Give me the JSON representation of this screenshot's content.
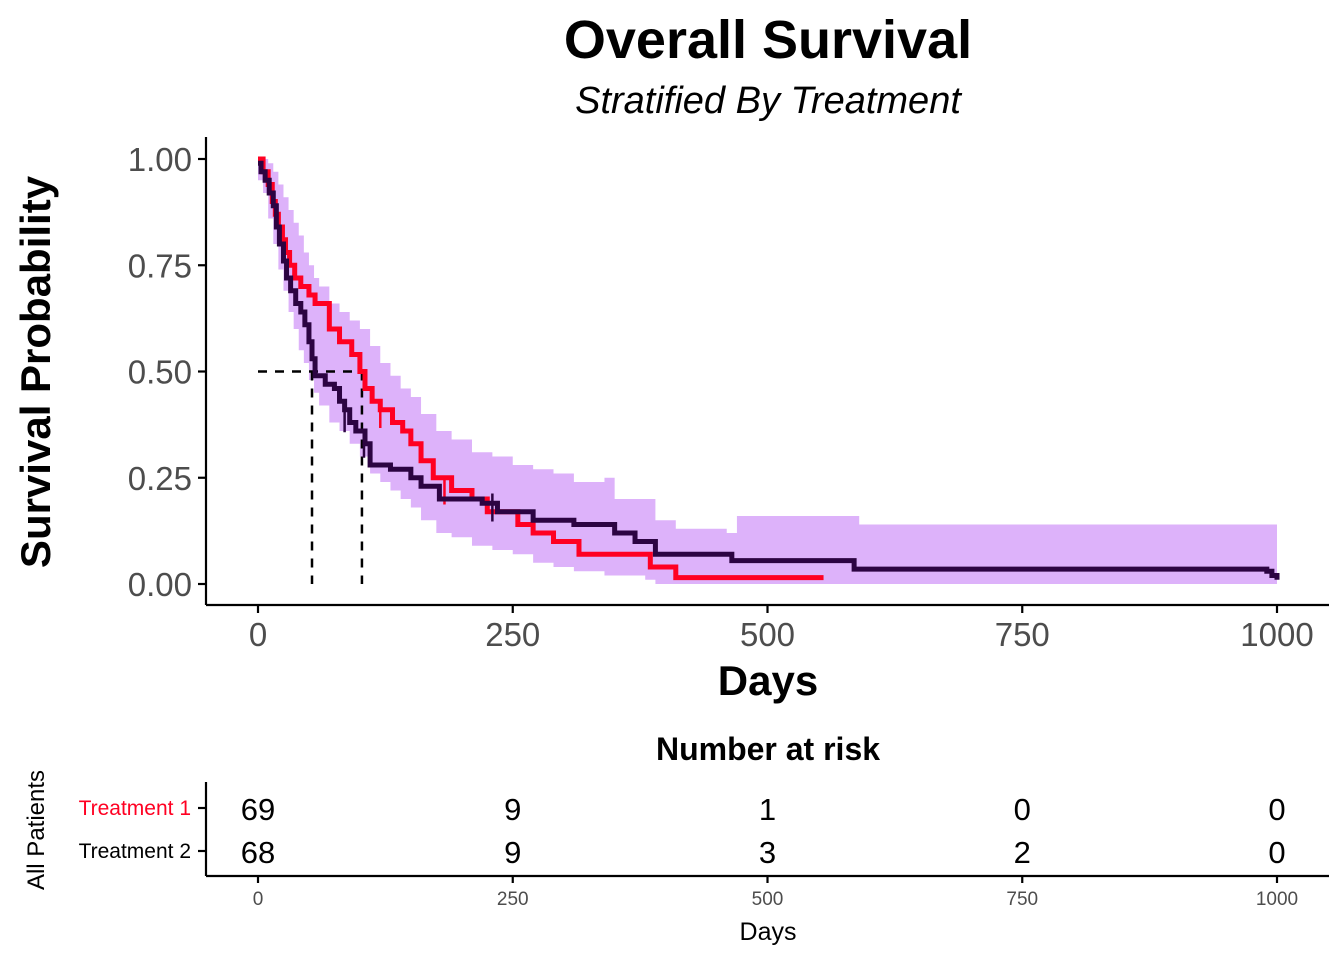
{
  "colors": {
    "treatment1": "#FF0022",
    "treatment2": "#2C0442",
    "ci_band": "#DDB2FA",
    "median_line": "#000000"
  },
  "chart_data": {
    "type": "line",
    "title": "Overall Survival",
    "subtitle": "Stratified By Treatment",
    "xlabel": "Days",
    "ylabel": "Survival Probability",
    "xlim": [
      0,
      1000
    ],
    "ylim": [
      0,
      1
    ],
    "x_ticks": [
      "0",
      "250",
      "500",
      "750",
      "1000"
    ],
    "y_ticks": [
      "0.00",
      "0.25",
      "0.50",
      "0.75",
      "1.00"
    ],
    "grid": false,
    "series": [
      {
        "color_key": "treatment1",
        "steps": [
          [
            0,
            1.0
          ],
          [
            5,
            0.97
          ],
          [
            10,
            0.94
          ],
          [
            14,
            0.9
          ],
          [
            17,
            0.87
          ],
          [
            20,
            0.84
          ],
          [
            24,
            0.81
          ],
          [
            27,
            0.78
          ],
          [
            31,
            0.75
          ],
          [
            36,
            0.72
          ],
          [
            42,
            0.7
          ],
          [
            50,
            0.68
          ],
          [
            56,
            0.66
          ],
          [
            70,
            0.6
          ],
          [
            80,
            0.57
          ],
          [
            92,
            0.54
          ],
          [
            100,
            0.5
          ],
          [
            105,
            0.46
          ],
          [
            112,
            0.43
          ],
          [
            120,
            0.41
          ],
          [
            132,
            0.38
          ],
          [
            142,
            0.36
          ],
          [
            150,
            0.33
          ],
          [
            160,
            0.29
          ],
          [
            172,
            0.25
          ],
          [
            190,
            0.22
          ],
          [
            210,
            0.2
          ],
          [
            225,
            0.17
          ],
          [
            255,
            0.14
          ],
          [
            270,
            0.12
          ],
          [
            290,
            0.1
          ],
          [
            315,
            0.07
          ],
          [
            385,
            0.04
          ],
          [
            410,
            0.015
          ],
          [
            555,
            0.015
          ]
        ],
        "censor": [
          [
            183,
            0.22
          ],
          [
            120,
            0.4
          ]
        ]
      },
      {
        "color_key": "treatment2",
        "steps": [
          [
            0,
            0.99
          ],
          [
            3,
            0.97
          ],
          [
            7,
            0.95
          ],
          [
            11,
            0.92
          ],
          [
            15,
            0.89
          ],
          [
            18,
            0.84
          ],
          [
            21,
            0.8
          ],
          [
            25,
            0.76
          ],
          [
            28,
            0.72
          ],
          [
            32,
            0.69
          ],
          [
            37,
            0.66
          ],
          [
            42,
            0.64
          ],
          [
            46,
            0.61
          ],
          [
            50,
            0.57
          ],
          [
            53,
            0.53
          ],
          [
            56,
            0.49
          ],
          [
            66,
            0.47
          ],
          [
            75,
            0.46
          ],
          [
            80,
            0.43
          ],
          [
            85,
            0.41
          ],
          [
            90,
            0.38
          ],
          [
            96,
            0.36
          ],
          [
            105,
            0.33
          ],
          [
            110,
            0.28
          ],
          [
            130,
            0.27
          ],
          [
            150,
            0.25
          ],
          [
            160,
            0.23
          ],
          [
            178,
            0.2
          ],
          [
            220,
            0.19
          ],
          [
            235,
            0.17
          ],
          [
            270,
            0.15
          ],
          [
            310,
            0.14
          ],
          [
            350,
            0.12
          ],
          [
            370,
            0.1
          ],
          [
            390,
            0.07
          ],
          [
            465,
            0.055
          ],
          [
            585,
            0.035
          ],
          [
            990,
            0.03
          ],
          [
            995,
            0.02
          ],
          [
            1000,
            0.01
          ]
        ],
        "censor": [
          [
            85,
            0.39
          ],
          [
            104,
            0.33
          ],
          [
            230,
            0.18
          ]
        ]
      }
    ],
    "ci_band": [
      [
        0,
        1.0,
        0.95
      ],
      [
        5,
        1.0,
        0.92
      ],
      [
        10,
        0.99,
        0.86
      ],
      [
        15,
        0.97,
        0.8
      ],
      [
        20,
        0.94,
        0.74
      ],
      [
        25,
        0.91,
        0.69
      ],
      [
        30,
        0.88,
        0.64
      ],
      [
        35,
        0.85,
        0.6
      ],
      [
        40,
        0.82,
        0.55
      ],
      [
        45,
        0.78,
        0.52
      ],
      [
        50,
        0.75,
        0.48
      ],
      [
        55,
        0.72,
        0.45
      ],
      [
        60,
        0.7,
        0.42
      ],
      [
        70,
        0.66,
        0.38
      ],
      [
        80,
        0.64,
        0.36
      ],
      [
        90,
        0.62,
        0.33
      ],
      [
        100,
        0.6,
        0.3
      ],
      [
        110,
        0.56,
        0.26
      ],
      [
        120,
        0.52,
        0.24
      ],
      [
        130,
        0.49,
        0.22
      ],
      [
        140,
        0.46,
        0.2
      ],
      [
        150,
        0.44,
        0.18
      ],
      [
        160,
        0.4,
        0.15
      ],
      [
        175,
        0.36,
        0.12
      ],
      [
        190,
        0.34,
        0.11
      ],
      [
        210,
        0.31,
        0.09
      ],
      [
        230,
        0.3,
        0.08
      ],
      [
        250,
        0.28,
        0.07
      ],
      [
        270,
        0.27,
        0.05
      ],
      [
        290,
        0.26,
        0.04
      ],
      [
        310,
        0.24,
        0.03
      ],
      [
        330,
        0.24,
        0.03
      ],
      [
        340,
        0.25,
        0.02
      ],
      [
        350,
        0.2,
        0.02
      ],
      [
        380,
        0.2,
        0.01
      ],
      [
        390,
        0.15,
        0.0
      ],
      [
        410,
        0.13,
        0.0
      ],
      [
        460,
        0.12,
        0.0
      ],
      [
        470,
        0.16,
        0.0
      ],
      [
        560,
        0.16,
        0.0
      ],
      [
        580,
        0.16,
        0.0
      ],
      [
        590,
        0.14,
        0.0
      ],
      [
        990,
        0.14,
        0.0
      ],
      [
        1000,
        0.11,
        0.0
      ]
    ],
    "median_lines": {
      "y": 0.5,
      "x": [
        53,
        102
      ]
    }
  },
  "risk_table": {
    "title": "Number at risk",
    "ylabel": "All Patients",
    "xlabel": "Days",
    "x_ticks": [
      "0",
      "250",
      "500",
      "750",
      "1000"
    ],
    "rows": [
      {
        "label": "Treatment 1",
        "color_key": "treatment1",
        "values": [
          "69",
          "9",
          "1",
          "0",
          "0"
        ]
      },
      {
        "label": "Treatment 2",
        "color_key": "treatment2_label",
        "values": [
          "68",
          "9",
          "3",
          "2",
          "0"
        ]
      }
    ]
  }
}
